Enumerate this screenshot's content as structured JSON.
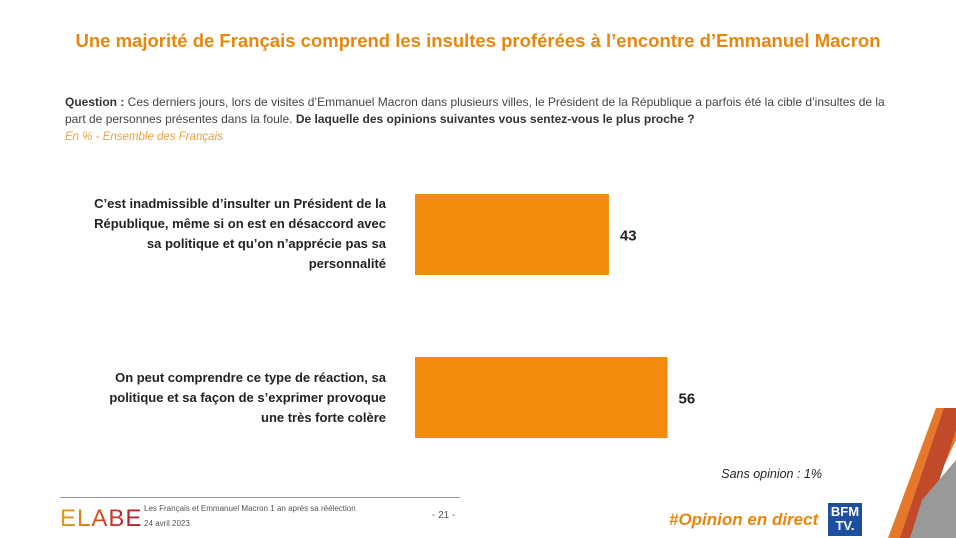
{
  "header": {
    "title": "Une majorité de Français comprend les insultes proférées à l’encontre d’Emmanuel Macron"
  },
  "question": {
    "label": "Question :",
    "text": " Ces derniers jours, lors de visites d’Emmanuel Macron dans plusieurs villes, le Président de la République a parfois été la cible d’insultes de la part de personnes présentes dans la foule. ",
    "bold": "De laquelle des opinions suivantes vous sentez-vous le plus proche ?"
  },
  "subtitle": "En % - Ensemble des Français",
  "chart_data": {
    "type": "bar",
    "orientation": "horizontal",
    "unit": "%",
    "categories": [
      "C’est inadmissible d’insulter un Président de la République, même si on est en désaccord avec sa politique et qu’on n’apprécie pas sa personnalité",
      "On peut comprendre ce type de réaction, sa politique et sa façon de s’exprimer provoque une très forte colère"
    ],
    "values": [
      43,
      56
    ],
    "value_labels": [
      "43",
      "56"
    ],
    "color": "#F28C0F",
    "xlim": [
      0,
      100
    ],
    "annotation": "Sans opinion : 1%"
  },
  "footer": {
    "brand": "ELABE",
    "study": "Les Français et Emmanuel Macron 1 an après sa réélection",
    "date": "24 avril 2023",
    "page": "- 21 -",
    "hashtag": "#Opinion en direct",
    "partner": "BFM TV."
  }
}
